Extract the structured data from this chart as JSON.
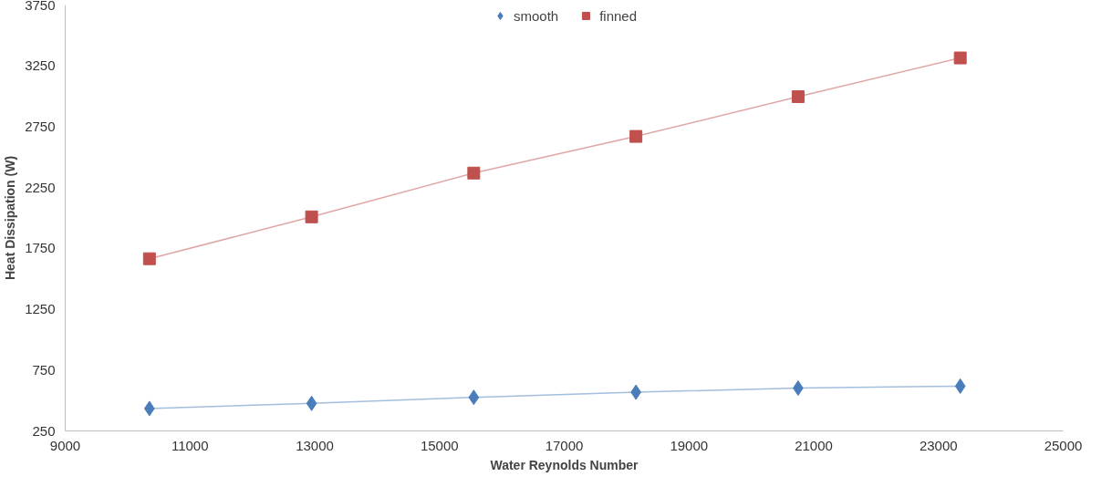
{
  "chart_data": {
    "type": "line",
    "xlabel": "Water Reynolds Number",
    "ylabel": "Heat Dissipation (W)",
    "xlim": [
      9000,
      25000
    ],
    "xticks": [
      9000,
      11000,
      13000,
      15000,
      17000,
      19000,
      21000,
      23000,
      25000
    ],
    "ylim": [
      250,
      3750
    ],
    "yticks": [
      250,
      750,
      1250,
      1750,
      2250,
      2750,
      3250,
      3750
    ],
    "grid": false,
    "legend": "top",
    "series": [
      {
        "name": "smooth",
        "color": "#4a7ebb",
        "marker": "diamond",
        "x": [
          10350,
          12950,
          15550,
          18150,
          20750,
          23350
        ],
        "values": [
          434,
          476,
          526,
          568,
          602,
          618
        ]
      },
      {
        "name": "finned",
        "color": "#c0504d",
        "marker": "square",
        "x": [
          10350,
          12950,
          15550,
          18150,
          20750,
          23350
        ],
        "values": [
          1665,
          2009,
          2369,
          2670,
          2997,
          3315
        ]
      }
    ]
  }
}
